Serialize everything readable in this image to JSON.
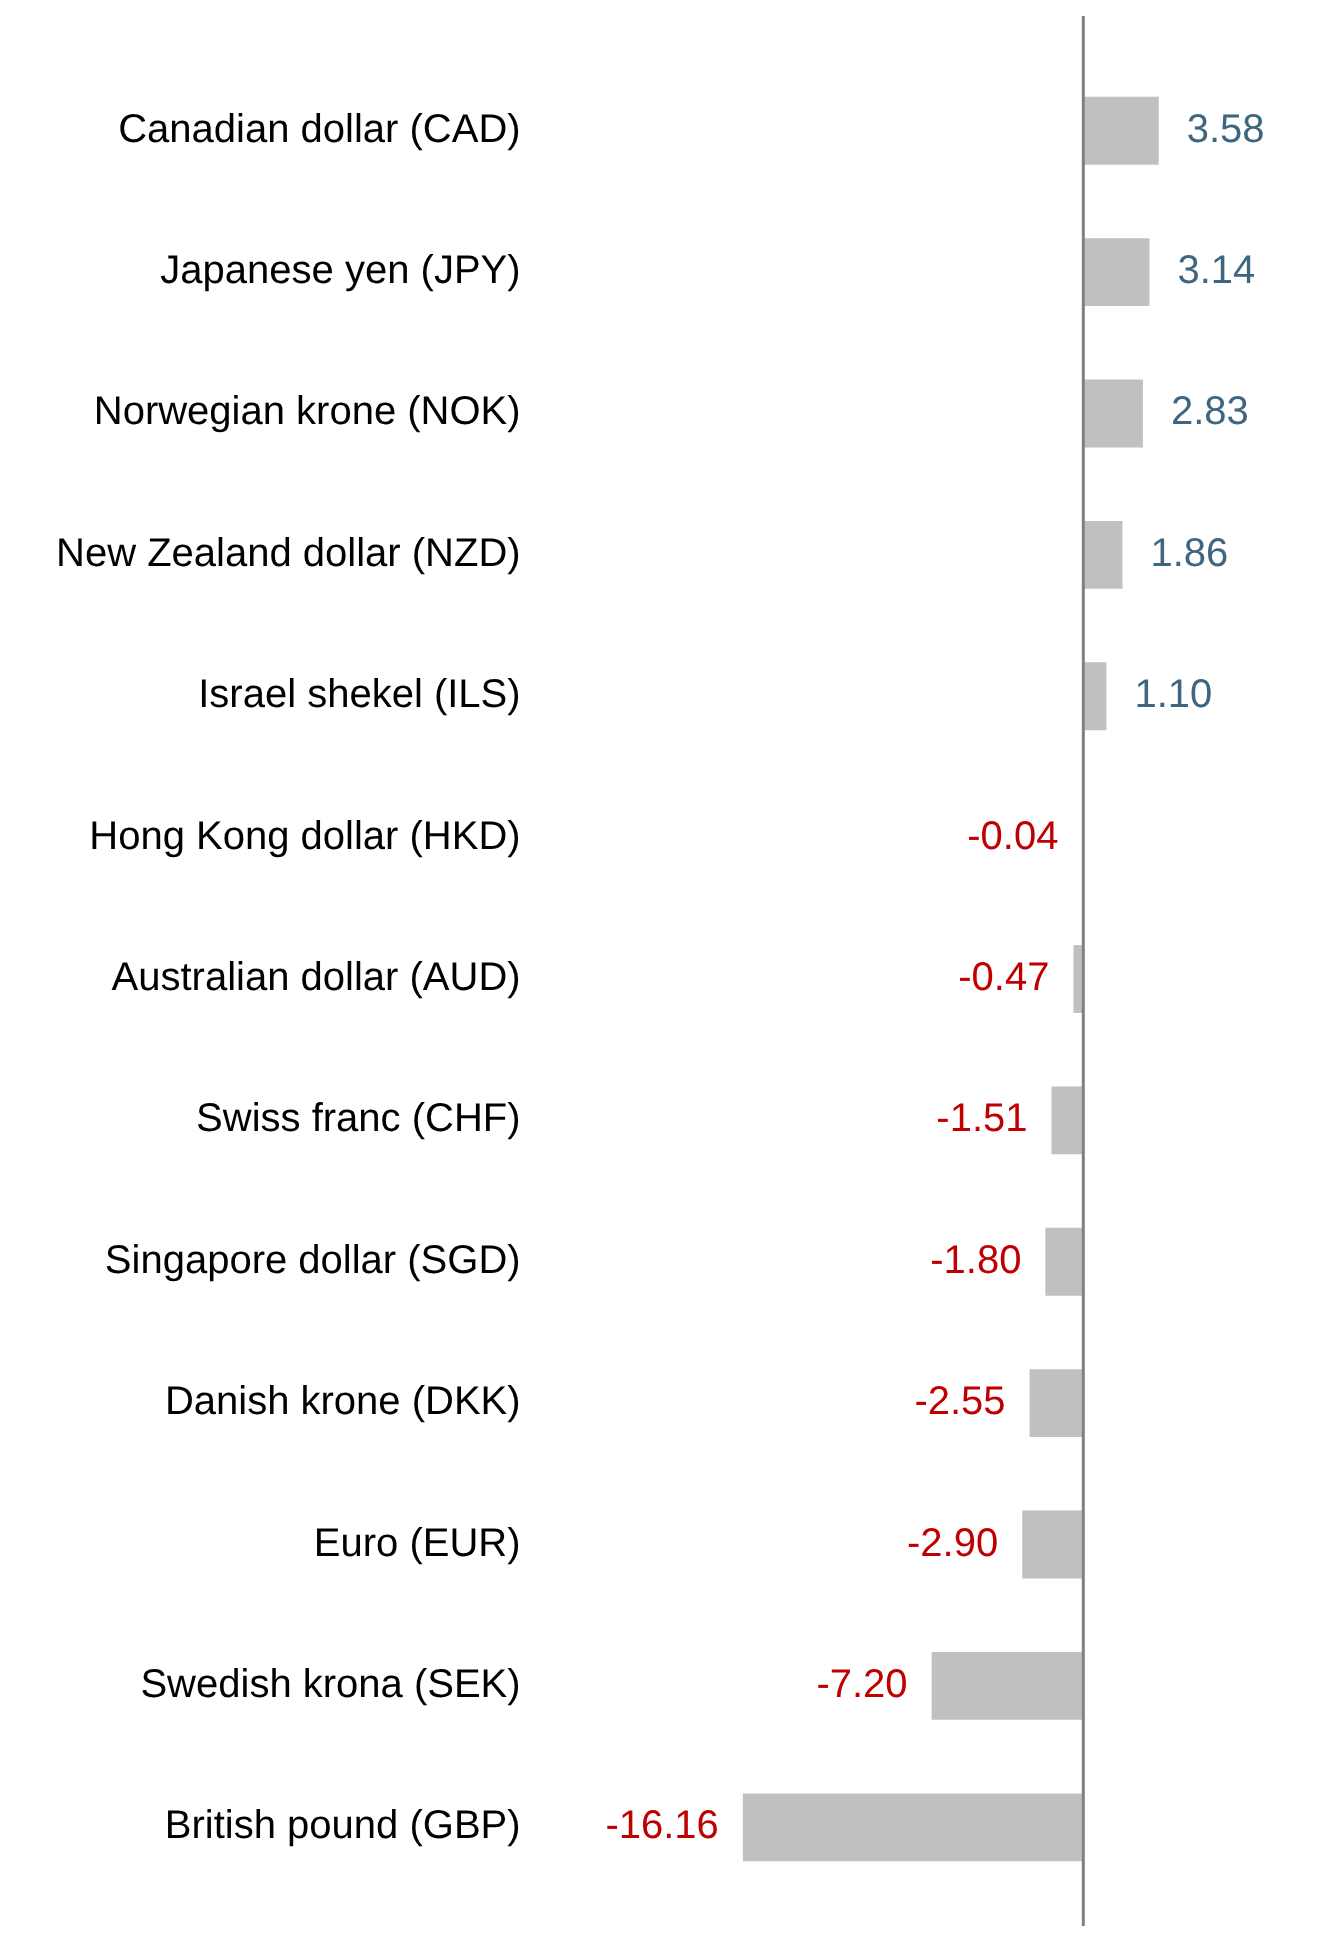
{
  "chart_data": {
    "type": "bar",
    "orientation": "horizontal",
    "data_labels": true,
    "categories": [
      "Canadian dollar (CAD)",
      "Japanese yen (JPY)",
      "Norwegian krone (NOK)",
      "New Zealand dollar (NZD)",
      "Israel shekel (ILS)",
      "Hong Kong dollar (HKD)",
      "Australian dollar (AUD)",
      "Swiss franc (CHF)",
      "Singapore dollar (SGD)",
      "Danish krone (DKK)",
      "Euro (EUR)",
      "Swedish krona (SEK)",
      "British pound (GBP)"
    ],
    "values": [
      3.58,
      3.14,
      2.83,
      1.86,
      1.1,
      -0.04,
      -0.47,
      -1.51,
      -1.8,
      -2.55,
      -2.9,
      -7.2,
      -16.16
    ],
    "value_labels": [
      "3.58",
      "3.14",
      "2.83",
      "1.86",
      "1.10",
      "-0.04",
      "-0.47",
      "-1.51",
      "-1.80",
      "-2.55",
      "-2.90",
      "-7.20",
      "-16.16"
    ],
    "color": "#c0c0c0"
  }
}
